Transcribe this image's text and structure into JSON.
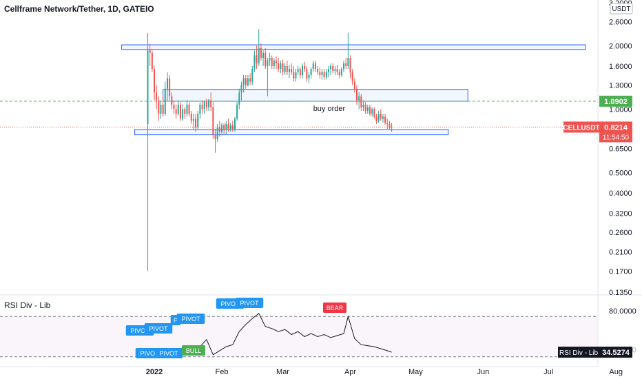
{
  "header": {
    "title": "Cellframe Network/Tether, 1D, GATEIO"
  },
  "currency_badge": "USDT",
  "price_axis": {
    "top_partial": "3.2000",
    "ticks": [
      "2.6000",
      "2.0000",
      "1.6000",
      "1.3000",
      "1.0000",
      "0.6500",
      "0.5000",
      "0.4000",
      "0.3200",
      "0.2600",
      "0.2100",
      "0.1700",
      "0.1350"
    ]
  },
  "time_axis": {
    "ticks": [
      "2022",
      "Feb",
      "Mar",
      "Apr",
      "May",
      "Jun",
      "Jul",
      "Aug"
    ]
  },
  "labels": {
    "target_price": "1.0902",
    "current_symbol": "CELLUSDT",
    "current_price": "0.8214",
    "countdown": "11:54:50",
    "annotation": "buy order"
  },
  "rsi": {
    "title": "RSI Div - Lib",
    "axis_top": "80.0000",
    "axis_partial": "40.0000",
    "badge_name": "RSI Div - Lib",
    "badge_value": "34.5274",
    "markers": [
      {
        "text": "PIVOT",
        "kind": "pivot-high"
      },
      {
        "text": "PIVOT",
        "kind": "pivot-high"
      },
      {
        "text": "P",
        "kind": "pivot-high"
      },
      {
        "text": "PIVOT",
        "kind": "pivot-high"
      },
      {
        "text": "PIVOT",
        "kind": "pivot-high"
      },
      {
        "text": "PIVOT",
        "kind": "pivot-high"
      },
      {
        "text": "BEAR",
        "kind": "bear"
      },
      {
        "text": "PIVOT",
        "kind": "pivot-low"
      },
      {
        "text": "PIVOT",
        "kind": "pivot-low"
      },
      {
        "text": "BULL",
        "kind": "bull"
      }
    ]
  },
  "colors": {
    "up": "#26a69a",
    "down": "#ef5350",
    "zone": "#2962ff",
    "target": "#4caf50",
    "pivot": "#2196f3",
    "bear": "#f23645",
    "bull": "#4caf50",
    "rsi_bg": "#f3e5f5"
  },
  "chart_data": {
    "type": "candlestick",
    "title": "Cellframe Network/Tether, 1D, GATEIO",
    "y_scale": "log",
    "ylim": [
      0.135,
      3.2
    ],
    "x_range": [
      "2022-01-01",
      "2022-08-31"
    ],
    "candles_ohlc": [
      [
        "2021-12-29",
        0.85,
        2.3,
        0.17,
        1.9
      ],
      [
        "2021-12-30",
        1.9,
        2.05,
        1.6,
        1.85
      ],
      [
        "2021-12-31",
        1.85,
        1.9,
        1.5,
        1.55
      ],
      [
        "2022-01-01",
        1.55,
        1.6,
        1.1,
        1.2
      ],
      [
        "2022-01-02",
        1.2,
        1.3,
        1.0,
        1.1
      ],
      [
        "2022-01-03",
        1.1,
        1.15,
        0.88,
        0.95
      ],
      [
        "2022-01-04",
        0.95,
        1.1,
        0.9,
        1.05
      ],
      [
        "2022-01-05",
        1.05,
        1.15,
        0.92,
        0.95
      ],
      [
        "2022-01-06",
        0.95,
        1.35,
        0.93,
        1.25
      ],
      [
        "2022-01-07",
        1.25,
        1.5,
        1.1,
        1.4
      ],
      [
        "2022-01-08",
        1.4,
        1.45,
        1.1,
        1.15
      ],
      [
        "2022-01-09",
        1.15,
        1.2,
        1.0,
        1.05
      ],
      [
        "2022-01-10",
        1.05,
        1.1,
        0.95,
        1.0
      ],
      [
        "2022-01-11",
        1.0,
        1.05,
        0.9,
        0.95
      ],
      [
        "2022-01-12",
        0.95,
        1.1,
        0.93,
        1.05
      ],
      [
        "2022-01-13",
        1.05,
        1.08,
        0.88,
        0.9
      ],
      [
        "2022-01-14",
        0.9,
        1.05,
        0.88,
        1.0
      ],
      [
        "2022-01-15",
        1.0,
        1.02,
        0.9,
        0.95
      ],
      [
        "2022-01-16",
        0.95,
        1.1,
        0.92,
        1.05
      ],
      [
        "2022-01-17",
        1.05,
        1.08,
        0.92,
        0.95
      ],
      [
        "2022-01-18",
        0.95,
        0.98,
        0.85,
        0.88
      ],
      [
        "2022-01-19",
        0.88,
        0.95,
        0.8,
        0.9
      ],
      [
        "2022-01-20",
        0.9,
        0.95,
        0.78,
        0.82
      ],
      [
        "2022-01-21",
        0.82,
        0.98,
        0.8,
        0.95
      ],
      [
        "2022-01-22",
        0.95,
        1.08,
        0.9,
        1.05
      ],
      [
        "2022-01-23",
        1.05,
        1.1,
        0.95,
        1.0
      ],
      [
        "2022-01-24",
        1.0,
        1.1,
        0.95,
        1.08
      ],
      [
        "2022-01-25",
        1.08,
        1.12,
        0.98,
        1.02
      ],
      [
        "2022-01-26",
        1.02,
        1.12,
        0.98,
        1.1
      ],
      [
        "2022-01-27",
        1.1,
        1.2,
        0.98,
        1.02
      ],
      [
        "2022-01-28",
        1.02,
        1.08,
        0.72,
        0.76
      ],
      [
        "2022-01-29",
        0.76,
        0.8,
        0.62,
        0.72
      ],
      [
        "2022-01-30",
        0.72,
        0.85,
        0.7,
        0.82
      ],
      [
        "2022-01-31",
        0.82,
        0.88,
        0.74,
        0.78
      ],
      [
        "2022-02-01",
        0.78,
        0.86,
        0.75,
        0.84
      ],
      [
        "2022-02-02",
        0.84,
        0.86,
        0.76,
        0.8
      ],
      [
        "2022-02-03",
        0.8,
        0.88,
        0.76,
        0.85
      ],
      [
        "2022-02-04",
        0.85,
        0.9,
        0.78,
        0.8
      ],
      [
        "2022-02-05",
        0.8,
        0.86,
        0.78,
        0.84
      ],
      [
        "2022-02-06",
        0.84,
        0.88,
        0.78,
        0.8
      ],
      [
        "2022-02-07",
        0.8,
        0.92,
        0.78,
        0.9
      ],
      [
        "2022-02-08",
        0.9,
        1.08,
        0.88,
        1.05
      ],
      [
        "2022-02-09",
        1.05,
        1.25,
        1.0,
        1.2
      ],
      [
        "2022-02-10",
        1.2,
        1.35,
        1.1,
        1.3
      ],
      [
        "2022-02-11",
        1.3,
        1.45,
        1.2,
        1.4
      ],
      [
        "2022-02-12",
        1.4,
        1.45,
        1.25,
        1.3
      ],
      [
        "2022-02-13",
        1.3,
        1.45,
        1.28,
        1.4
      ],
      [
        "2022-02-14",
        1.4,
        1.48,
        1.3,
        1.35
      ],
      [
        "2022-02-15",
        1.35,
        1.6,
        1.3,
        1.55
      ],
      [
        "2022-02-16",
        1.55,
        1.9,
        1.5,
        1.8
      ],
      [
        "2022-02-17",
        1.8,
        2.0,
        1.55,
        1.65
      ],
      [
        "2022-02-18",
        1.65,
        2.4,
        1.6,
        1.95
      ],
      [
        "2022-02-19",
        1.95,
        2.05,
        1.7,
        1.75
      ],
      [
        "2022-02-20",
        1.75,
        1.9,
        1.6,
        1.85
      ],
      [
        "2022-02-21",
        1.85,
        1.95,
        1.55,
        1.6
      ],
      [
        "2022-02-22",
        1.6,
        1.75,
        1.15,
        1.7
      ],
      [
        "2022-02-23",
        1.7,
        1.85,
        1.6,
        1.75
      ],
      [
        "2022-02-24",
        1.75,
        1.8,
        1.55,
        1.6
      ],
      [
        "2022-02-25",
        1.6,
        1.75,
        1.55,
        1.7
      ],
      [
        "2022-02-26",
        1.7,
        1.78,
        1.55,
        1.65
      ],
      [
        "2022-02-27",
        1.65,
        1.75,
        1.5,
        1.55
      ],
      [
        "2022-02-28",
        1.55,
        1.7,
        1.48,
        1.65
      ],
      [
        "2022-03-01",
        1.65,
        1.72,
        1.45,
        1.5
      ],
      [
        "2022-03-02",
        1.5,
        1.65,
        1.45,
        1.6
      ],
      [
        "2022-03-03",
        1.6,
        1.7,
        1.45,
        1.5
      ],
      [
        "2022-03-04",
        1.5,
        1.62,
        1.4,
        1.55
      ],
      [
        "2022-03-05",
        1.55,
        1.65,
        1.45,
        1.5
      ],
      [
        "2022-03-06",
        1.5,
        1.6,
        1.35,
        1.4
      ],
      [
        "2022-03-07",
        1.4,
        1.55,
        1.35,
        1.5
      ],
      [
        "2022-03-08",
        1.5,
        1.6,
        1.45,
        1.55
      ],
      [
        "2022-03-09",
        1.55,
        1.58,
        1.4,
        1.45
      ],
      [
        "2022-03-10",
        1.45,
        1.65,
        1.4,
        1.6
      ],
      [
        "2022-03-11",
        1.6,
        1.68,
        1.5,
        1.55
      ],
      [
        "2022-03-12",
        1.55,
        1.6,
        1.35,
        1.4
      ],
      [
        "2022-03-13",
        1.4,
        1.5,
        1.32,
        1.45
      ],
      [
        "2022-03-14",
        1.45,
        1.58,
        1.4,
        1.55
      ],
      [
        "2022-03-15",
        1.55,
        1.7,
        1.5,
        1.65
      ],
      [
        "2022-03-16",
        1.65,
        1.7,
        1.5,
        1.55
      ],
      [
        "2022-03-17",
        1.55,
        1.6,
        1.45,
        1.5
      ],
      [
        "2022-03-18",
        1.5,
        1.58,
        1.4,
        1.45
      ],
      [
        "2022-03-19",
        1.45,
        1.55,
        1.38,
        1.5
      ],
      [
        "2022-03-20",
        1.5,
        1.55,
        1.38,
        1.42
      ],
      [
        "2022-03-21",
        1.42,
        1.55,
        1.38,
        1.5
      ],
      [
        "2022-03-22",
        1.5,
        1.6,
        1.42,
        1.55
      ],
      [
        "2022-03-23",
        1.55,
        1.65,
        1.45,
        1.6
      ],
      [
        "2022-03-24",
        1.6,
        1.65,
        1.48,
        1.52
      ],
      [
        "2022-03-25",
        1.52,
        1.6,
        1.45,
        1.55
      ],
      [
        "2022-03-26",
        1.55,
        1.62,
        1.45,
        1.5
      ],
      [
        "2022-03-27",
        1.5,
        1.55,
        1.4,
        1.45
      ],
      [
        "2022-03-28",
        1.45,
        1.58,
        1.42,
        1.55
      ],
      [
        "2022-03-29",
        1.55,
        1.7,
        1.5,
        1.65
      ],
      [
        "2022-03-30",
        1.65,
        1.75,
        1.55,
        1.6
      ],
      [
        "2022-03-31",
        1.6,
        2.3,
        1.55,
        1.75
      ],
      [
        "2022-04-01",
        1.75,
        1.8,
        1.4,
        1.5
      ],
      [
        "2022-04-02",
        1.5,
        1.55,
        1.3,
        1.35
      ],
      [
        "2022-04-03",
        1.35,
        1.4,
        1.2,
        1.25
      ],
      [
        "2022-04-04",
        1.25,
        1.3,
        1.05,
        1.1
      ],
      [
        "2022-04-05",
        1.1,
        1.2,
        1.0,
        1.15
      ],
      [
        "2022-04-06",
        1.15,
        1.18,
        0.98,
        1.02
      ],
      [
        "2022-04-07",
        1.02,
        1.1,
        0.98,
        1.05
      ],
      [
        "2022-04-08",
        1.05,
        1.08,
        0.95,
        0.98
      ],
      [
        "2022-04-09",
        0.98,
        1.05,
        0.95,
        1.02
      ],
      [
        "2022-04-10",
        1.02,
        1.05,
        0.93,
        0.95
      ],
      [
        "2022-04-11",
        0.95,
        1.02,
        0.92,
        1.0
      ],
      [
        "2022-04-12",
        1.0,
        1.02,
        0.9,
        0.92
      ],
      [
        "2022-04-13",
        0.92,
        0.95,
        0.85,
        0.88
      ],
      [
        "2022-04-14",
        0.88,
        0.98,
        0.86,
        0.95
      ],
      [
        "2022-04-15",
        0.95,
        1.0,
        0.88,
        0.9
      ],
      [
        "2022-04-16",
        0.9,
        0.95,
        0.86,
        0.92
      ],
      [
        "2022-04-17",
        0.92,
        0.95,
        0.84,
        0.86
      ],
      [
        "2022-04-18",
        0.86,
        0.9,
        0.8,
        0.85
      ],
      [
        "2022-04-19",
        0.85,
        0.88,
        0.8,
        0.82
      ],
      [
        "2022-04-20",
        0.82,
        0.86,
        0.78,
        0.8214
      ]
    ],
    "horizontal_lines": [
      {
        "price": 1.0902,
        "style": "dashed",
        "color": "#4caf50"
      },
      {
        "price": 0.8214,
        "style": "dotted",
        "color": "#ef5350"
      }
    ],
    "zones": [
      {
        "from": "2021-12-17",
        "to": "2022-07-18",
        "low": 1.92,
        "high": 2.02
      },
      {
        "from": "2022-01-05",
        "to": "2022-05-25",
        "low": 1.09,
        "high": 1.24,
        "text": "buy order"
      },
      {
        "from": "2021-12-23",
        "to": "2022-05-16",
        "low": 0.755,
        "high": 0.8
      }
    ],
    "rsi": {
      "title": "RSI Div - Lib",
      "ylim": [
        25,
        90
      ],
      "levels": [
        70,
        30
      ],
      "last": 34.5274,
      "points": [
        [
          "2022-01-07",
          38
        ],
        [
          "2022-01-10",
          35
        ],
        [
          "2022-01-13",
          38
        ],
        [
          "2022-01-16",
          40
        ],
        [
          "2022-01-19",
          36
        ],
        [
          "2022-01-22",
          40
        ],
        [
          "2022-01-25",
          47
        ],
        [
          "2022-01-28",
          32
        ],
        [
          "2022-01-31",
          36
        ],
        [
          "2022-02-03",
          40
        ],
        [
          "2022-02-06",
          42
        ],
        [
          "2022-02-09",
          55
        ],
        [
          "2022-02-12",
          62
        ],
        [
          "2022-02-15",
          68
        ],
        [
          "2022-02-18",
          73
        ],
        [
          "2022-02-21",
          60
        ],
        [
          "2022-02-24",
          58
        ],
        [
          "2022-02-27",
          55
        ],
        [
          "2022-03-02",
          57
        ],
        [
          "2022-03-05",
          52
        ],
        [
          "2022-03-08",
          55
        ],
        [
          "2022-03-11",
          50
        ],
        [
          "2022-03-14",
          53
        ],
        [
          "2022-03-17",
          50
        ],
        [
          "2022-03-20",
          52
        ],
        [
          "2022-03-23",
          49
        ],
        [
          "2022-03-26",
          51
        ],
        [
          "2022-03-29",
          53
        ],
        [
          "2022-03-31",
          70
        ],
        [
          "2022-04-03",
          48
        ],
        [
          "2022-04-06",
          42
        ],
        [
          "2022-04-09",
          41
        ],
        [
          "2022-04-12",
          40
        ],
        [
          "2022-04-15",
          38
        ],
        [
          "2022-04-18",
          36
        ],
        [
          "2022-04-20",
          34.5274
        ]
      ]
    }
  }
}
